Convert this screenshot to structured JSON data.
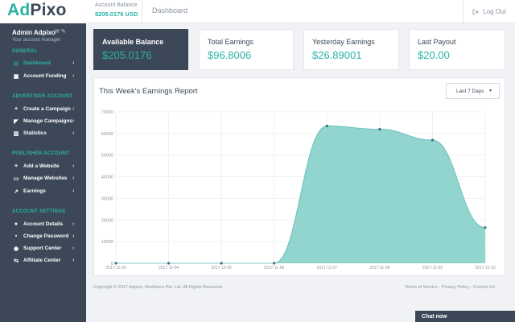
{
  "header": {
    "logo_part1": "Ad",
    "logo_part2": "Pixo",
    "balance_label": "Account Balance",
    "balance_value": "$205.0176 USD",
    "breadcrumb": "Dashboard",
    "logout_label": "Log Out"
  },
  "sidebar": {
    "user_name": "Admin Adpixo",
    "user_sub": "Your account manager",
    "sections": {
      "general": "GENERAL",
      "advertiser": "ADVERTISER ACCOUNT",
      "publisher": "PUBLISHER ACCOUNT",
      "settings": "ACCOUNT SETTINGS"
    },
    "items": [
      {
        "label": "Dashboard",
        "icon": "dashboard-icon"
      },
      {
        "label": "Account Funding",
        "icon": "money-icon"
      },
      {
        "label": "Create a Campaign",
        "icon": "plus-icon"
      },
      {
        "label": "Manage Campaigns",
        "icon": "megaphone-icon"
      },
      {
        "label": "Statistics",
        "icon": "chart-icon"
      },
      {
        "label": "Add a Website",
        "icon": "plus-icon"
      },
      {
        "label": "Manage Websites",
        "icon": "monitor-icon"
      },
      {
        "label": "Earnings",
        "icon": "line-chart-icon"
      },
      {
        "label": "Account Details",
        "icon": "user-icon"
      },
      {
        "label": "Change Password",
        "icon": "lock-icon"
      },
      {
        "label": "Support Center",
        "icon": "support-icon"
      },
      {
        "label": "Affiliate Center",
        "icon": "share-icon"
      }
    ]
  },
  "cards": [
    {
      "label": "Available Balance",
      "value": "$205.0176"
    },
    {
      "label": "Total Earnings",
      "value": "$96.8006"
    },
    {
      "label": "Yesterday Earnings",
      "value": "$26.89001"
    },
    {
      "label": "Last Payout",
      "value": "$20.00"
    }
  ],
  "panel": {
    "title": "This Week's Earnings Report",
    "range_select": "Last 7 Days"
  },
  "chart_data": {
    "type": "area",
    "title": "This Week's Earnings Report",
    "categories": [
      "2017-11-03",
      "2017-11-04",
      "2017-11-05",
      "2017-11-06",
      "2017-11-07",
      "2017-11-08",
      "2017-11-09",
      "2017-11-10"
    ],
    "values": [
      0,
      0,
      0,
      0,
      63500,
      62000,
      57000,
      16500
    ],
    "yticks": [
      0,
      10000,
      20000,
      30000,
      40000,
      50000,
      60000,
      70000
    ],
    "ylim": [
      0,
      70000
    ],
    "xlabel": "",
    "ylabel": "",
    "colors": {
      "fill": "#7fcdc6",
      "line": "#5bbdb4",
      "point": "#3c6f80",
      "grid": "#e6e9ed",
      "text": "#8a94a3"
    }
  },
  "footer": {
    "copyright": "Copyright © 2017 Adpixo, Medisturn Pte. Ltd. All Rights Reserved.",
    "links": "Terms of Service - Privacy Policy - Contact Us"
  },
  "chat": {
    "label": "Chat now"
  },
  "colors": {
    "accent": "#2ab3a6",
    "sidebar": "#3c4858"
  }
}
